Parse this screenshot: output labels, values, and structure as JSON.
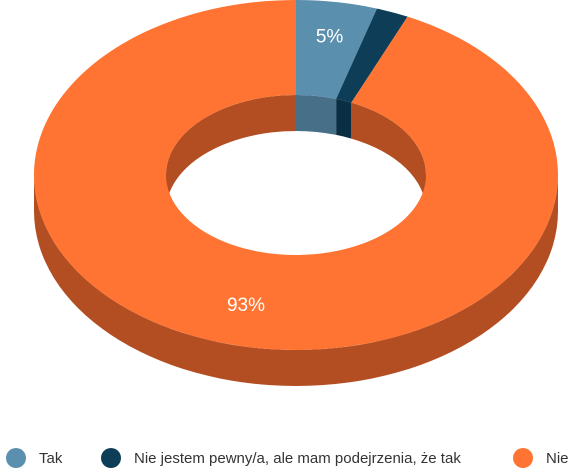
{
  "chart_data": {
    "type": "pie",
    "variant": "donut-3d",
    "slices": [
      {
        "label": "Tak",
        "value": 5,
        "data_label": "5%",
        "color": "#5b8fae",
        "side_color": "#476f88"
      },
      {
        "label": "Nie jestem pewny/a, ale mam podejrzenia, że tak",
        "value": 2,
        "data_label": "",
        "color": "#0d3d57",
        "side_color": "#0a2f44"
      },
      {
        "label": "Nie",
        "value": 93,
        "data_label": "93%",
        "color": "#ff7433",
        "side_color": "#b34e22"
      }
    ],
    "legend": {
      "placement": "bottom",
      "entries": [
        "Tak",
        "Nie jestem pewny/a, ale mam podejrzenia, że tak",
        "Nie"
      ]
    },
    "title": "",
    "grid": false
  }
}
